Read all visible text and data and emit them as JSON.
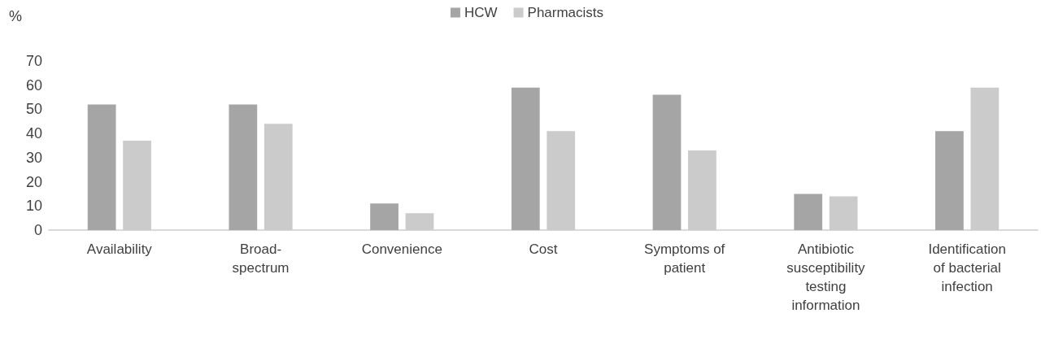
{
  "chart_data": {
    "type": "bar",
    "ylabel": "%",
    "categories": [
      "Availability",
      "Broad-\nspectrum",
      "Convenience",
      "Cost",
      "Symptoms of\npatient",
      "Antibiotic\nsusceptibility\ntesting\ninformation",
      "Identification\nof bacterial\ninfection"
    ],
    "series": [
      {
        "name": "HCW",
        "color": "#a5a5a5",
        "values": [
          52,
          52,
          11,
          59,
          56,
          15,
          41
        ]
      },
      {
        "name": "Pharmacists",
        "color": "#cbcbcb",
        "values": [
          37,
          44,
          7,
          41,
          33,
          14,
          59
        ]
      }
    ],
    "ylim": [
      0,
      70
    ],
    "yticks": [
      0,
      10,
      20,
      30,
      40,
      50,
      60,
      70
    ],
    "grid": false,
    "legend": "top"
  }
}
